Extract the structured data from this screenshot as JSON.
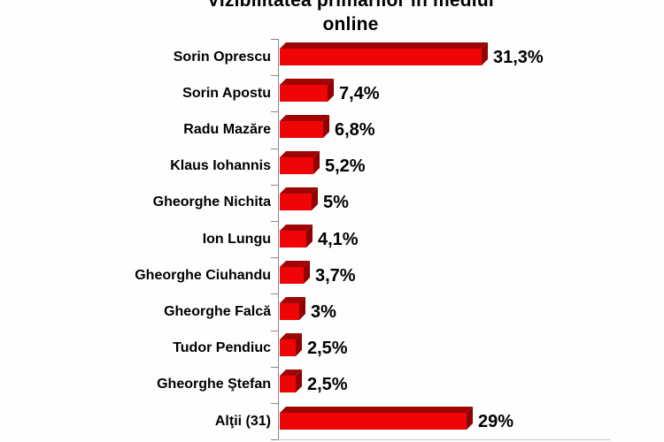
{
  "title": {
    "line1": "Vizibilitatea primarilor în mediul",
    "line2": "online",
    "full": "Vizibilitatea primarilor în mediul online"
  },
  "chart_data": {
    "type": "bar",
    "orientation": "horizontal",
    "style": "3d-extruded",
    "title": "Vizibilitatea primarilor în mediul online",
    "categories": [
      "Sorin Oprescu",
      "Sorin Apostu",
      "Radu Mazăre",
      "Klaus Iohannis",
      "Gheorghe Nichita",
      "Ion Lungu",
      "Gheorghe Ciuhandu",
      "Gheorghe Falcă",
      "Tudor Pendiuc",
      "Gheorghe Ştefan",
      "Alţii (31)"
    ],
    "values": [
      31.3,
      7.4,
      6.8,
      5.2,
      5,
      4.1,
      3.7,
      3,
      2.5,
      2.5,
      29
    ],
    "value_labels": [
      "31,3%",
      "7,4%",
      "6,8%",
      "5,2%",
      "5%",
      "4,1%",
      "3,7%",
      "3%",
      "2,5%",
      "2,5%",
      "29%"
    ],
    "xlabel": "",
    "ylabel": "",
    "xlim": [
      0,
      35
    ],
    "grid": false,
    "legend": false,
    "colors": {
      "bar_front": "#ef0505",
      "bar_top": "#a00505",
      "bar_end": "#8e0202",
      "axis": "#888888",
      "text": "#000000",
      "background": "#fefefe"
    }
  }
}
